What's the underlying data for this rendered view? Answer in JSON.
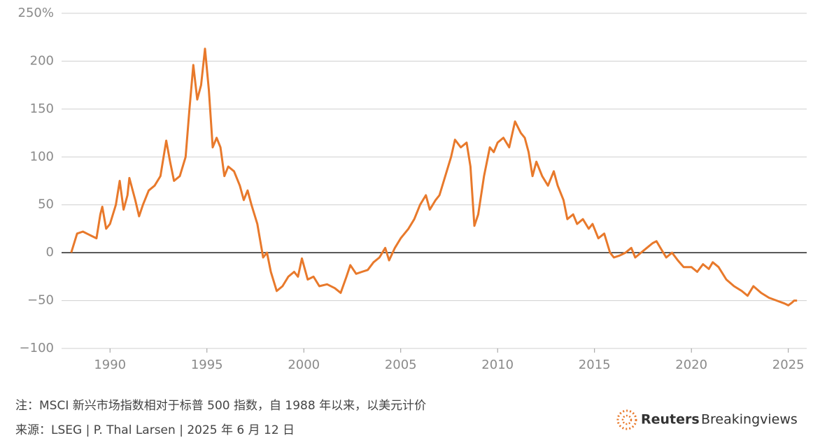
{
  "chart_data": {
    "type": "line",
    "note": "注：MSCI 新兴市场指数相对于标普 500 指数，自 1988 年以来，以美元计价",
    "source": "来源：LSEG | P. Thal Larsen | 2025 年 6 月 12 日",
    "logo": {
      "brand": "Reuters",
      "product": "Breakingviews"
    },
    "color": "#e8792b",
    "grid": true,
    "xlim": [
      1987.5,
      2025.95
    ],
    "xticks": [
      1990,
      1995,
      2000,
      2005,
      2010,
      2015,
      2020,
      2025
    ],
    "ylim": [
      -100,
      250
    ],
    "yticks": [
      {
        "value": 250,
        "label": "250%"
      },
      200,
      150,
      100,
      50,
      0,
      {
        "value": -50,
        "label": "−50"
      },
      {
        "value": -100,
        "label": "−100"
      }
    ],
    "x": [
      1988.0,
      1988.3,
      1988.6,
      1989.0,
      1989.3,
      1989.5,
      1989.6,
      1989.8,
      1990.0,
      1990.3,
      1990.5,
      1990.7,
      1990.9,
      1991.0,
      1991.3,
      1991.5,
      1991.7,
      1992.0,
      1992.3,
      1992.6,
      1992.9,
      1993.1,
      1993.3,
      1993.6,
      1993.9,
      1994.1,
      1994.3,
      1994.5,
      1994.7,
      1994.9,
      1995.1,
      1995.3,
      1995.5,
      1995.7,
      1995.9,
      1996.1,
      1996.4,
      1996.7,
      1996.9,
      1997.1,
      1997.3,
      1997.6,
      1997.9,
      1998.1,
      1998.3,
      1998.6,
      1998.9,
      1999.2,
      1999.5,
      1999.7,
      1999.9,
      2000.2,
      2000.5,
      2000.8,
      2001.2,
      2001.6,
      2001.9,
      2002.2,
      2002.4,
      2002.7,
      2003.0,
      2003.3,
      2003.6,
      2003.9,
      2004.2,
      2004.4,
      2004.7,
      2005.0,
      2005.4,
      2005.7,
      2006.0,
      2006.3,
      2006.5,
      2006.8,
      2007.0,
      2007.3,
      2007.6,
      2007.8,
      2008.1,
      2008.4,
      2008.6,
      2008.8,
      2009.0,
      2009.3,
      2009.6,
      2009.8,
      2010.0,
      2010.3,
      2010.6,
      2010.9,
      2011.2,
      2011.4,
      2011.6,
      2011.8,
      2012.0,
      2012.3,
      2012.6,
      2012.9,
      2013.1,
      2013.4,
      2013.6,
      2013.9,
      2014.1,
      2014.4,
      2014.7,
      2014.9,
      2015.2,
      2015.5,
      2015.8,
      2016.0,
      2016.3,
      2016.6,
      2016.9,
      2017.1,
      2017.4,
      2017.7,
      2018.0,
      2018.2,
      2018.4,
      2018.7,
      2019.0,
      2019.3,
      2019.6,
      2020.0,
      2020.3,
      2020.6,
      2020.9,
      2021.1,
      2021.4,
      2021.8,
      2022.2,
      2022.6,
      2022.9,
      2023.2,
      2023.6,
      2024.0,
      2024.4,
      2024.8,
      2025.0,
      2025.2,
      2025.3,
      2025.45
    ],
    "values": [
      0,
      20,
      22,
      18,
      15,
      40,
      48,
      25,
      30,
      50,
      75,
      45,
      60,
      78,
      55,
      38,
      50,
      65,
      70,
      80,
      117,
      95,
      75,
      80,
      100,
      150,
      196,
      160,
      175,
      213,
      170,
      110,
      120,
      110,
      80,
      90,
      85,
      70,
      55,
      65,
      50,
      30,
      -5,
      0,
      -20,
      -40,
      -35,
      -25,
      -20,
      -25,
      -6,
      -28,
      -25,
      -35,
      -33,
      -37,
      -42,
      -25,
      -13,
      -22,
      -20,
      -18,
      -10,
      -5,
      5,
      -8,
      5,
      15,
      25,
      35,
      50,
      60,
      45,
      55,
      60,
      80,
      100,
      118,
      110,
      115,
      90,
      28,
      40,
      80,
      110,
      105,
      115,
      120,
      110,
      137,
      125,
      120,
      105,
      80,
      95,
      80,
      70,
      85,
      70,
      55,
      35,
      40,
      30,
      35,
      25,
      30,
      15,
      20,
      0,
      -5,
      -3,
      0,
      5,
      -5,
      0,
      5,
      10,
      12,
      5,
      -5,
      0,
      -8,
      -15,
      -15,
      -20,
      -12,
      -17,
      -10,
      -15,
      -28,
      -35,
      -40,
      -45,
      -35,
      -42,
      -47,
      -50,
      -53,
      -55,
      -52,
      -50,
      -50
    ]
  }
}
